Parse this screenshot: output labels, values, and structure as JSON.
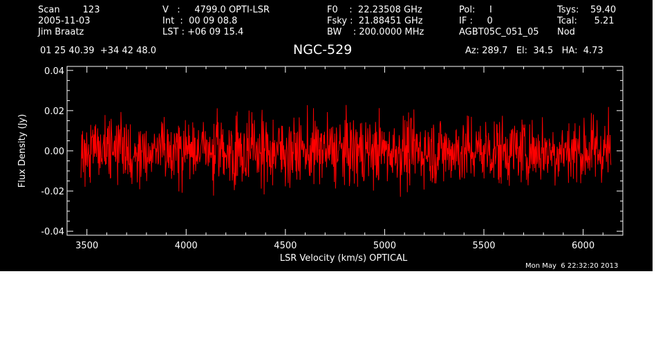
{
  "header": {
    "scan": "Scan        123",
    "date": "2005-11-03",
    "observer": "Jim Braatz",
    "coords": "01 25 40.39  +34 42 48.0",
    "velocity": "V   :     4799.0 OPTI-LSR",
    "int_time": "Int  :  00 09 08.8",
    "lst": "LST : +06 09 15.4",
    "f0": "F0    :  22.23508 GHz",
    "fsky": "Fsky :  21.88451 GHz",
    "bw": "BW    : 200.0000 MHz",
    "pol": "Pol:     I",
    "if_num": "IF :     0",
    "project": "AGBT05C_051_05",
    "tsys": "Tsys:    59.40",
    "tcal": "Tcal:      5.21",
    "mode": "Nod",
    "object": "NGC-529",
    "pointing": "Az: 289.7   El:  34.5   HA:  4.73",
    "timestamp": "Mon May  6 22:32:20 2013"
  },
  "chart_data": {
    "type": "line",
    "xlabel": "LSR Velocity (km/s) OPTICAL",
    "ylabel": "Flux Density (Jy)",
    "xlim": [
      3400,
      6200
    ],
    "ylim": [
      -0.042,
      0.042
    ],
    "x_ticks": [
      3500,
      4000,
      4500,
      5000,
      5500,
      6000
    ],
    "x_tick_labels": [
      "3500",
      "4000",
      "4500",
      "5000",
      "5500",
      "6000"
    ],
    "y_ticks": [
      0.04,
      0.02,
      0.0,
      -0.02,
      -0.04
    ],
    "y_tick_labels": [
      "0.04",
      "0.02",
      "0.00",
      "-0.02",
      "-0.04"
    ],
    "grid": false,
    "background": "#000000",
    "axis_color": "#ffffff",
    "series": [
      {
        "color": "#ff0000",
        "x_start": 3470,
        "x_end": 6140,
        "n_points": 1300,
        "mean": 0.0,
        "rms": 0.0085,
        "noise_seed": 529
      }
    ]
  }
}
